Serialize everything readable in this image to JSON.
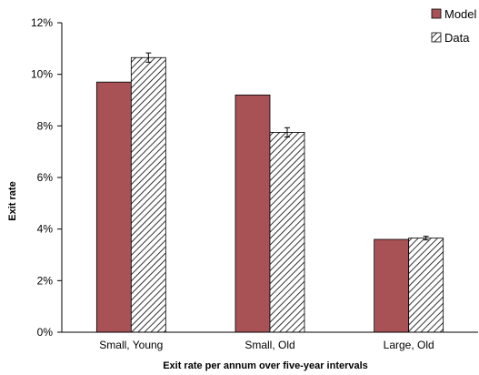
{
  "chart_data": {
    "type": "bar",
    "categories": [
      "Small, Young",
      "Small, Old",
      "Large, Old"
    ],
    "series": [
      {
        "name": "Model",
        "values": [
          9.7,
          9.2,
          3.6
        ],
        "color": "#a85256",
        "pattern": "solid"
      },
      {
        "name": "Data",
        "values": [
          10.65,
          7.75,
          3.65
        ],
        "errors": [
          0.18,
          0.18,
          0.07
        ],
        "pattern": "hatch"
      }
    ],
    "xlabel": "Exit rate per annum over five-year intervals",
    "ylabel": "Exit rate",
    "ylim": [
      0,
      12
    ],
    "yticks": [
      "0%",
      "2%",
      "4%",
      "6%",
      "8%",
      "10%",
      "12%"
    ],
    "grid": false,
    "legend": "top-right",
    "legend_labels": [
      "Model",
      "Data"
    ]
  }
}
